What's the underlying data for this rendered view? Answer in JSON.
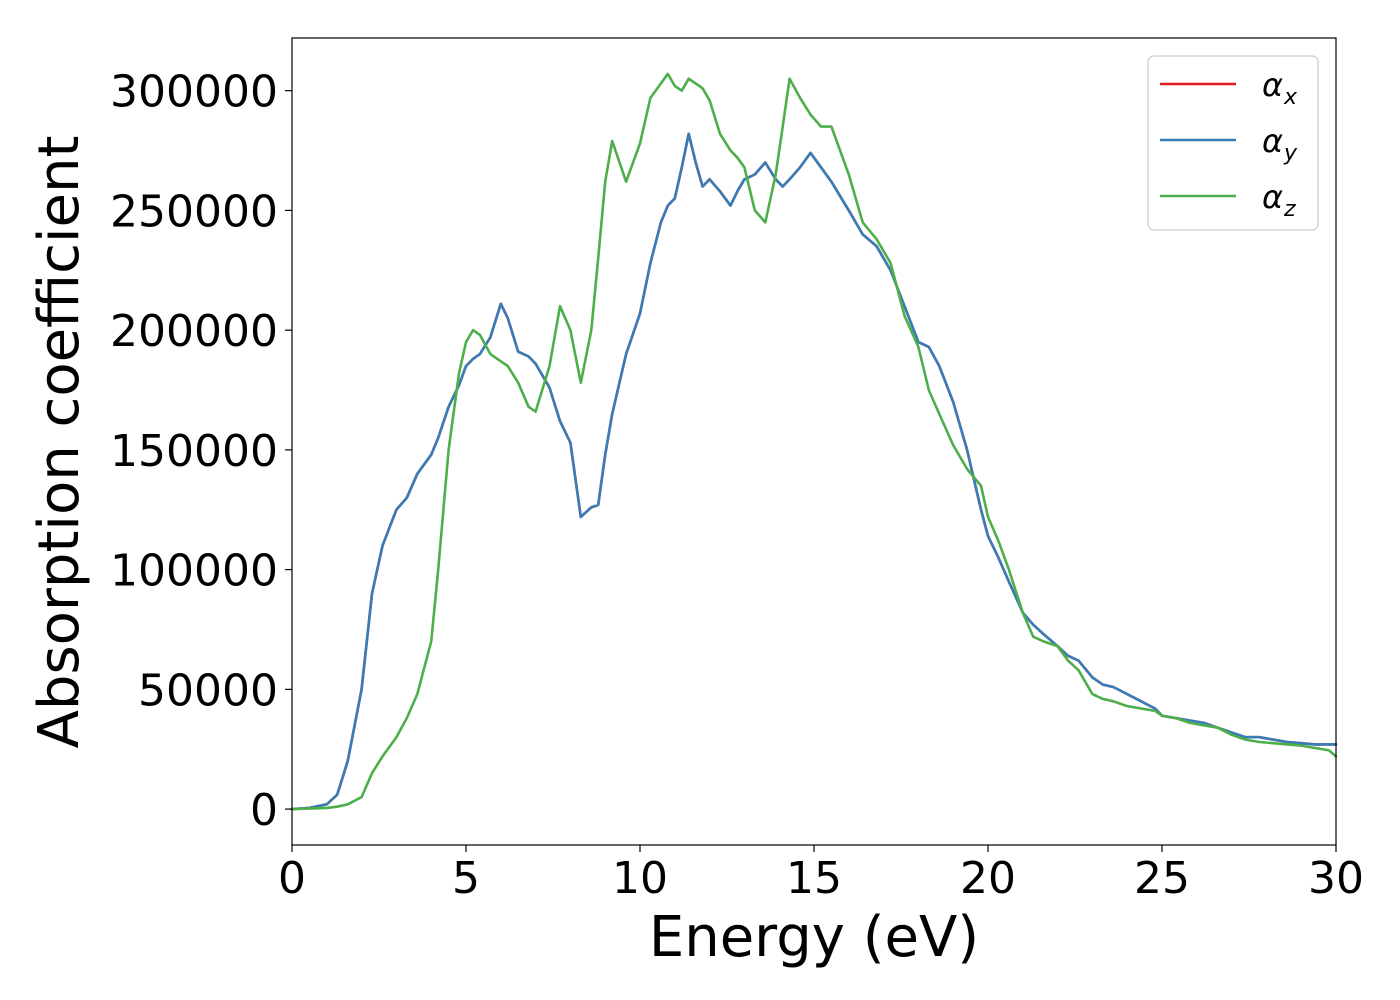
{
  "chart_data": {
    "type": "line",
    "title": "",
    "xlabel": "Energy (eV)",
    "ylabel": "Absorption coefficient",
    "xlim": [
      0,
      30
    ],
    "ylim": [
      -15000,
      322000
    ],
    "xticks": [
      0,
      5,
      10,
      15,
      20,
      25,
      30
    ],
    "xtick_labels": [
      "0",
      "5",
      "10",
      "15",
      "20",
      "25",
      "30"
    ],
    "yticks": [
      0,
      50000,
      100000,
      150000,
      200000,
      250000,
      300000
    ],
    "ytick_labels": [
      "0",
      "50000",
      "100000",
      "150000",
      "200000",
      "250000",
      "300000"
    ],
    "grid": false,
    "legend_position": "top-right",
    "x": [
      0,
      0.5,
      1.0,
      1.3,
      1.6,
      2.0,
      2.3,
      2.6,
      3.0,
      3.3,
      3.6,
      4.0,
      4.2,
      4.5,
      4.8,
      5.0,
      5.2,
      5.4,
      5.7,
      6.0,
      6.2,
      6.5,
      6.8,
      7.0,
      7.4,
      7.7,
      8.0,
      8.3,
      8.6,
      8.8,
      9.0,
      9.2,
      9.6,
      10.0,
      10.3,
      10.6,
      10.8,
      11.0,
      11.2,
      11.4,
      11.6,
      11.8,
      12.0,
      12.3,
      12.6,
      12.8,
      13.0,
      13.3,
      13.6,
      13.9,
      14.1,
      14.3,
      14.6,
      14.9,
      15.2,
      15.5,
      16.0,
      16.4,
      16.8,
      17.2,
      17.6,
      18.0,
      18.3,
      18.6,
      19.0,
      19.4,
      19.8,
      20.0,
      20.3,
      20.6,
      21.0,
      21.3,
      21.6,
      22.0,
      22.3,
      22.6,
      23.0,
      23.3,
      23.6,
      24.0,
      24.4,
      24.8,
      25.0,
      25.4,
      25.8,
      26.2,
      26.6,
      27.0,
      27.4,
      27.8,
      28.2,
      28.6,
      29.0,
      29.4,
      29.8,
      30.0
    ],
    "series": [
      {
        "name": "αx",
        "color": "#e41a1c",
        "values": [
          0,
          500,
          2000,
          6000,
          20000,
          50000,
          90000,
          110000,
          125000,
          130000,
          140000,
          148000,
          155000,
          168000,
          177000,
          185000,
          188000,
          190000,
          197000,
          211000,
          205000,
          191000,
          189000,
          186000,
          176000,
          162000,
          153000,
          122000,
          126000,
          127000,
          148000,
          165000,
          190000,
          207000,
          228000,
          245000,
          252000,
          255000,
          268000,
          282000,
          270000,
          260000,
          263000,
          258000,
          252000,
          258000,
          263000,
          265000,
          270000,
          263000,
          260000,
          263000,
          268000,
          274000,
          268000,
          262000,
          250000,
          240000,
          235000,
          225000,
          210000,
          195000,
          193000,
          185000,
          170000,
          150000,
          125000,
          114000,
          105000,
          95000,
          82000,
          77000,
          73000,
          68000,
          64000,
          62000,
          55000,
          52000,
          51000,
          48000,
          45000,
          42000,
          39000,
          38000,
          37000,
          36000,
          34000,
          32000,
          30000,
          30000,
          29000,
          28000,
          27500,
          27000,
          27000,
          27000
        ]
      },
      {
        "name": "αy",
        "color": "#377eb8",
        "values": [
          0,
          500,
          2000,
          6000,
          20000,
          50000,
          90000,
          110000,
          125000,
          130000,
          140000,
          148000,
          155000,
          168000,
          177000,
          185000,
          188000,
          190000,
          197000,
          211000,
          205000,
          191000,
          189000,
          186000,
          176000,
          162000,
          153000,
          122000,
          126000,
          127000,
          148000,
          165000,
          190000,
          207000,
          228000,
          245000,
          252000,
          255000,
          268000,
          282000,
          270000,
          260000,
          263000,
          258000,
          252000,
          258000,
          263000,
          265000,
          270000,
          263000,
          260000,
          263000,
          268000,
          274000,
          268000,
          262000,
          250000,
          240000,
          235000,
          225000,
          210000,
          195000,
          193000,
          185000,
          170000,
          150000,
          125000,
          114000,
          105000,
          95000,
          82000,
          77000,
          73000,
          68000,
          64000,
          62000,
          55000,
          52000,
          51000,
          48000,
          45000,
          42000,
          39000,
          38000,
          37000,
          36000,
          34000,
          32000,
          30000,
          30000,
          29000,
          28000,
          27500,
          27000,
          27000,
          27000
        ]
      },
      {
        "name": "αz",
        "color": "#4daf4a",
        "values": [
          0,
          200,
          500,
          1000,
          2000,
          5000,
          15000,
          22000,
          30000,
          38000,
          48000,
          70000,
          100000,
          150000,
          182000,
          195000,
          200000,
          198000,
          190000,
          187000,
          185000,
          178000,
          168000,
          166000,
          185000,
          210000,
          200000,
          178000,
          200000,
          230000,
          262000,
          279000,
          262000,
          278000,
          297000,
          303000,
          307000,
          302000,
          300000,
          305000,
          303000,
          301000,
          296000,
          282000,
          275000,
          272000,
          268000,
          250000,
          245000,
          265000,
          285000,
          305000,
          297000,
          290000,
          285000,
          285000,
          265000,
          245000,
          238000,
          228000,
          206000,
          193000,
          175000,
          165000,
          152000,
          142000,
          135000,
          122000,
          112000,
          100000,
          82000,
          72000,
          70000,
          68000,
          62000,
          58000,
          48000,
          46000,
          45000,
          43000,
          42000,
          41000,
          39000,
          38000,
          36000,
          35000,
          34000,
          31000,
          29000,
          28000,
          27500,
          27000,
          26500,
          25500,
          24500,
          22000
        ]
      }
    ]
  },
  "legend": {
    "items": [
      {
        "symbol": "α",
        "subscript": "x",
        "color": "#e41a1c"
      },
      {
        "symbol": "α",
        "subscript": "y",
        "color": "#377eb8"
      },
      {
        "symbol": "α",
        "subscript": "z",
        "color": "#4daf4a"
      }
    ]
  }
}
